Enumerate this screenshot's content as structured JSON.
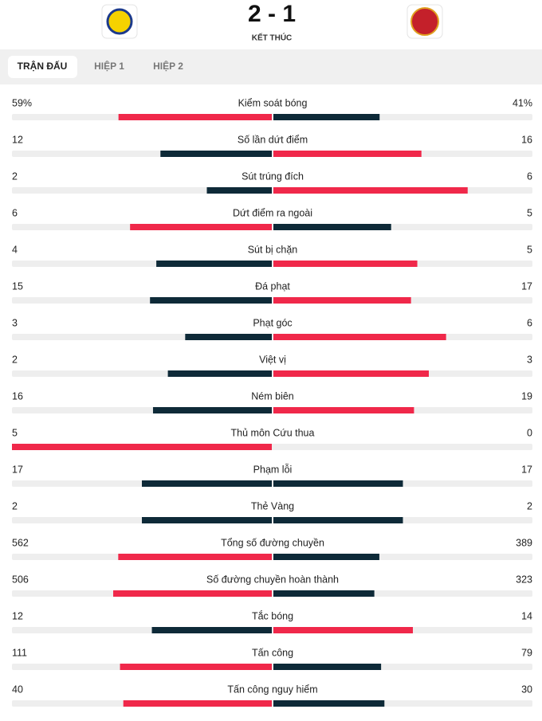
{
  "header": {
    "score": "2 - 1",
    "status": "KẾT THÚC"
  },
  "tabs": [
    "TRẬN ĐẤU",
    "HIỆP 1",
    "HIỆP 2"
  ],
  "stats": [
    {
      "label": "Kiểm soát bóng",
      "home": 59,
      "away": 41,
      "home_label": "59%",
      "away_label": "41%"
    },
    {
      "label": "Số lần dứt điểm",
      "home": 12,
      "away": 16
    },
    {
      "label": "Sút trúng đích",
      "home": 2,
      "away": 6
    },
    {
      "label": "Dứt điểm ra ngoài",
      "home": 6,
      "away": 5
    },
    {
      "label": "Sút bị chặn",
      "home": 4,
      "away": 5
    },
    {
      "label": "Đá phạt",
      "home": 15,
      "away": 17
    },
    {
      "label": "Phạt góc",
      "home": 3,
      "away": 6
    },
    {
      "label": "Việt vị",
      "home": 2,
      "away": 3
    },
    {
      "label": "Ném biên",
      "home": 16,
      "away": 19
    },
    {
      "label": "Thủ môn Cứu thua",
      "home": 5,
      "away": 0
    },
    {
      "label": "Phạm lỗi",
      "home": 17,
      "away": 17
    },
    {
      "label": "Thẻ Vàng",
      "home": 2,
      "away": 2
    },
    {
      "label": "Tổng số đường chuyền",
      "home": 562,
      "away": 389
    },
    {
      "label": "Số đường chuyền hoàn thành",
      "home": 506,
      "away": 323
    },
    {
      "label": "Tắc bóng",
      "home": 12,
      "away": 14
    },
    {
      "label": "Tấn công",
      "home": 111,
      "away": 79
    },
    {
      "label": "Tấn công nguy hiểm",
      "home": 40,
      "away": 30
    }
  ]
}
